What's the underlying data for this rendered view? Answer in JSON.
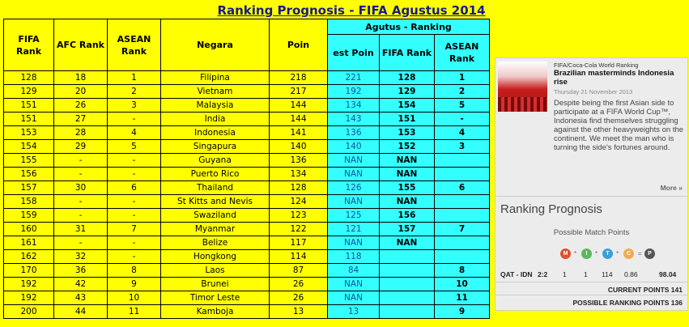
{
  "title": "Ranking Prognosis - FIFA Agustus 2014",
  "table": {
    "group_header": "Agutus - Ranking",
    "headers": [
      "FIFA Rank",
      "AFC Rank",
      "ASEAN Rank",
      "Negara",
      "Poin",
      "est Poin",
      "FIFA Rank",
      "ASEAN Rank"
    ],
    "rows": [
      [
        "128",
        "18",
        "1",
        "Filipina",
        "218",
        "221",
        "128",
        "1"
      ],
      [
        "129",
        "20",
        "2",
        "Vietnam",
        "217",
        "192",
        "129",
        "2"
      ],
      [
        "151",
        "26",
        "3",
        "Malaysia",
        "144",
        "134",
        "154",
        "5"
      ],
      [
        "151",
        "27",
        "-",
        "India",
        "144",
        "143",
        "151",
        "-"
      ],
      [
        "153",
        "28",
        "4",
        "Indonesia",
        "141",
        "136",
        "153",
        "4"
      ],
      [
        "154",
        "29",
        "5",
        "Singapura",
        "140",
        "140",
        "152",
        "3"
      ],
      [
        "155",
        "-",
        "-",
        "Guyana",
        "136",
        "NAN",
        "NAN",
        ""
      ],
      [
        "156",
        "-",
        "-",
        "Puerto Rico",
        "134",
        "NAN",
        "NAN",
        ""
      ],
      [
        "157",
        "30",
        "6",
        "Thailand",
        "128",
        "126",
        "155",
        "6"
      ],
      [
        "158",
        "-",
        "-",
        "St Kitts and Nevis",
        "124",
        "NAN",
        "NAN",
        ""
      ],
      [
        "159",
        "-",
        "-",
        "Swaziland",
        "123",
        "125",
        "156",
        ""
      ],
      [
        "160",
        "31",
        "7",
        "Myanmar",
        "122",
        "121",
        "157",
        "7"
      ],
      [
        "161",
        "-",
        "-",
        "Belize",
        "117",
        "NAN",
        "NAN",
        ""
      ],
      [
        "162",
        "32",
        "-",
        "Hongkong",
        "114",
        "118",
        "",
        ""
      ],
      [
        "170",
        "36",
        "8",
        "Laos",
        "87",
        "84",
        "",
        "8"
      ],
      [
        "192",
        "42",
        "9",
        "Brunei",
        "26",
        "NAN",
        "",
        "10"
      ],
      [
        "192",
        "43",
        "10",
        "Timor Leste",
        "26",
        "NAN",
        "",
        "11"
      ],
      [
        "200",
        "44",
        "11",
        "Kamboja",
        "13",
        "13",
        "",
        "9"
      ]
    ]
  },
  "panel": {
    "category": "FIFA/Coca-Cola World Ranking",
    "headline": "Brazilian masterminds Indonesia rise",
    "date": "Thursday 21 November 2013",
    "body": "Despite being the first Asian side to participate at a FIFA World Cup™, Indonesia find themselves struggling against the other heavyweights on the continent. We meet the man who is turning the side's fortunes around.",
    "more": "More »",
    "rp_title": "Ranking Prognosis",
    "pmp_label": "Possible Match Points",
    "factors": [
      {
        "letter": "M",
        "color": "#d9532c"
      },
      {
        "letter": "I",
        "color": "#5cb85c"
      },
      {
        "letter": "T",
        "color": "#3aa0d8"
      },
      {
        "letter": "C",
        "color": "#f0ad4e"
      },
      {
        "letter": "P",
        "color": "#555555"
      }
    ],
    "star": "*",
    "eq": "=",
    "match": {
      "teams": "QAT - IDN",
      "score": "2:2",
      "m": "1",
      "i": "1",
      "t": "114",
      "c": "0.86",
      "p": "98.04"
    },
    "current_points": "CURRENT POINTS 141",
    "possible_points": "POSSIBLE RANKING POINTS 136"
  }
}
